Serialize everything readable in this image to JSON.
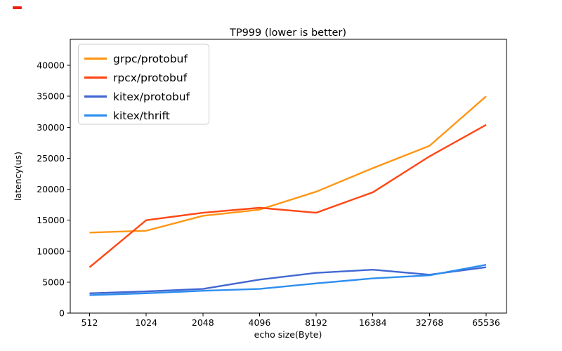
{
  "decor": {
    "artifact_dash_color": "#ef2010"
  },
  "chart_data": {
    "type": "line",
    "title": "TP999 (lower is better)",
    "xlabel": "echo size(Byte)",
    "ylabel": "latency(us)",
    "x_scale": "log2-categorical",
    "grid": false,
    "legend_position": "upper left",
    "categories": [
      "512",
      "1024",
      "2048",
      "4096",
      "8192",
      "16384",
      "32768",
      "65536"
    ],
    "y_ticks": [
      0,
      5000,
      10000,
      15000,
      20000,
      25000,
      30000,
      35000,
      40000
    ],
    "ylim": [
      0,
      44200
    ],
    "series": [
      {
        "name": "grpc/protobuf",
        "color": "#ff9614",
        "values": [
          13000,
          13300,
          15700,
          16700,
          19600,
          23400,
          27000,
          35000
        ]
      },
      {
        "name": "rpcx/protobuf",
        "color": "#ff4714",
        "values": [
          7400,
          15000,
          16200,
          17000,
          16200,
          19500,
          25300,
          30400
        ]
      },
      {
        "name": "kitex/protobuf",
        "color": "#4267d2",
        "values": [
          3200,
          3500,
          3900,
          5400,
          6500,
          7000,
          6200,
          7400
        ]
      },
      {
        "name": "kitex/thrift",
        "color": "#2d8ef0",
        "values": [
          2900,
          3200,
          3600,
          3900,
          4800,
          5600,
          6100,
          7800
        ]
      }
    ]
  }
}
